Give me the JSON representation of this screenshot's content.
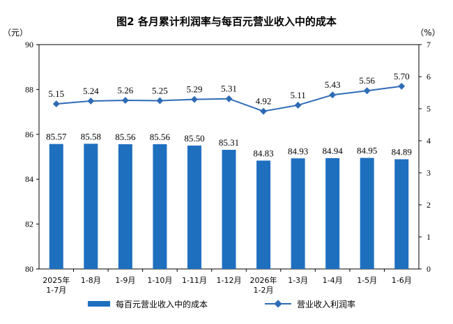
{
  "chart_data": {
    "type": "bar",
    "title": "图2  各月累计利润率与每百元营业收入中的成本",
    "y_left_unit": "（元）",
    "y_right_unit": "（%）",
    "y_left_ticks": [
      "80",
      "82",
      "84",
      "86",
      "88",
      "90"
    ],
    "y_right_ticks": [
      "0",
      "1",
      "2",
      "3",
      "4",
      "5",
      "6",
      "7"
    ],
    "ylim_left": [
      80,
      90
    ],
    "ylim_right": [
      0,
      7
    ],
    "grid": false,
    "legend_position": "bottom",
    "categories": [
      [
        "2025年",
        "1-7月"
      ],
      [
        "1-8月"
      ],
      [
        "1-9月"
      ],
      [
        "1-10月"
      ],
      [
        "1-11月"
      ],
      [
        "1-12月"
      ],
      [
        "2026年",
        "1-2月"
      ],
      [
        "1-3月"
      ],
      [
        "1-4月"
      ],
      [
        "1-5月"
      ],
      [
        "1-6月"
      ]
    ],
    "series": [
      {
        "name": "每百元营业收入中的成本",
        "type": "bar",
        "axis": "left",
        "color": "#1f6fbf",
        "values": [
          85.57,
          85.58,
          85.56,
          85.56,
          85.5,
          85.31,
          84.83,
          84.93,
          84.94,
          84.95,
          84.89
        ],
        "labels": [
          "85.57",
          "85.58",
          "85.56",
          "85.56",
          "85.50",
          "85.31",
          "84.83",
          "84.93",
          "84.94",
          "84.95",
          "84.89"
        ]
      },
      {
        "name": "营业收入利润率",
        "type": "line",
        "axis": "right",
        "color": "#2e6bb5",
        "values": [
          5.15,
          5.24,
          5.26,
          5.25,
          5.29,
          5.31,
          4.92,
          5.11,
          5.43,
          5.56,
          5.7
        ],
        "labels": [
          "5.15",
          "5.24",
          "5.26",
          "5.25",
          "5.29",
          "5.31",
          "4.92",
          "5.11",
          "5.43",
          "5.56",
          "5.70"
        ]
      }
    ]
  }
}
